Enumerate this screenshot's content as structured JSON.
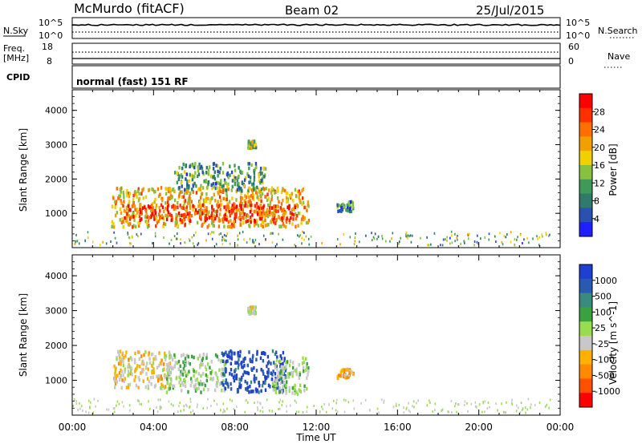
{
  "header": {
    "station": "McMurdo (fitACF)",
    "beam": "Beam 02",
    "date": "25/Jul/2015"
  },
  "strips": {
    "nsky_label": "N.Sky",
    "nsky_ticks": [
      "10^5",
      "10^0"
    ],
    "nsearch_label": "N.Search",
    "nsearch_ticks": [
      "10^5",
      "10^0"
    ],
    "freq_label_1": "Freq.",
    "freq_label_2": "[MHz]",
    "freq_ticks": [
      "18",
      "8"
    ],
    "nave_label": "Nave",
    "nave_ticks": [
      "60",
      "0"
    ],
    "cpid_label": "CPID",
    "cpid_value": "normal (fast) 151 RF"
  },
  "colors": {
    "power_scale": [
      "#1f1fff",
      "#2a50b0",
      "#2f7a6a",
      "#3f9a5a",
      "#88c040",
      "#f0d000",
      "#f0a000",
      "#ff7000",
      "#ff3000",
      "#ff0000"
    ],
    "velocity_scale": [
      "#ff0000",
      "#ff5000",
      "#ff8a00",
      "#ffb000",
      "#c8c8c8",
      "#9adc50",
      "#3aa040",
      "#3a8a80",
      "#2a5ab0",
      "#1f3fd0"
    ]
  },
  "chart_data": [
    {
      "type": "heatmap",
      "name": "power",
      "xlabel": "",
      "ylabel": "Slant Range [km]",
      "xlim": [
        "00:00",
        "24:00"
      ],
      "ylim": [
        0,
        4600
      ],
      "yticks": [
        "1000",
        "2000",
        "3000",
        "4000"
      ],
      "colorbar": {
        "label": "Power [dB]",
        "range": [
          0,
          32
        ],
        "ticks": [
          "4",
          "8",
          "12",
          "16",
          "20",
          "24",
          "28"
        ]
      },
      "regions": [
        {
          "x": [
            1.9,
            11.6
          ],
          "y": [
            650,
            1800
          ],
          "value": 20
        },
        {
          "x": [
            2.5,
            11.0
          ],
          "y": [
            800,
            1300
          ],
          "value": 27
        },
        {
          "x": [
            5.0,
            9.5
          ],
          "y": [
            1700,
            2500
          ],
          "value": 10
        },
        {
          "x": [
            8.6,
            9.0
          ],
          "y": [
            2950,
            3150
          ],
          "value": 14
        },
        {
          "x": [
            13.0,
            13.8
          ],
          "y": [
            1100,
            1400
          ],
          "value": 9
        }
      ]
    },
    {
      "type": "heatmap",
      "name": "velocity",
      "xlabel": "Time UT",
      "ylabel": "Slant Range [km]",
      "xticks": [
        "00:00",
        "04:00",
        "08:00",
        "12:00",
        "16:00",
        "20:00",
        "00:00"
      ],
      "xlim": [
        "00:00",
        "24:00"
      ],
      "ylim": [
        0,
        4600
      ],
      "yticks": [
        "1000",
        "2000",
        "3000",
        "4000"
      ],
      "colorbar": {
        "label": "Velocity [m s^-1]",
        "range": [
          -1000,
          1000
        ],
        "ticks": [
          "1000",
          "500",
          "100",
          "25",
          "-25",
          "-100",
          "-500",
          "-1000"
        ]
      },
      "regions": [
        {
          "x": [
            2.0,
            4.8
          ],
          "y": [
            800,
            1900
          ],
          "value": -200
        },
        {
          "x": [
            4.5,
            7.5
          ],
          "y": [
            700,
            1800
          ],
          "value": 60
        },
        {
          "x": [
            7.3,
            10.5
          ],
          "y": [
            700,
            1900
          ],
          "value": 800
        },
        {
          "x": [
            9.8,
            11.6
          ],
          "y": [
            650,
            1700
          ],
          "value": 60
        },
        {
          "x": [
            8.6,
            9.0
          ],
          "y": [
            2950,
            3150
          ],
          "value": 0
        },
        {
          "x": [
            13.0,
            13.8
          ],
          "y": [
            1100,
            1400
          ],
          "value": -300
        }
      ]
    }
  ]
}
